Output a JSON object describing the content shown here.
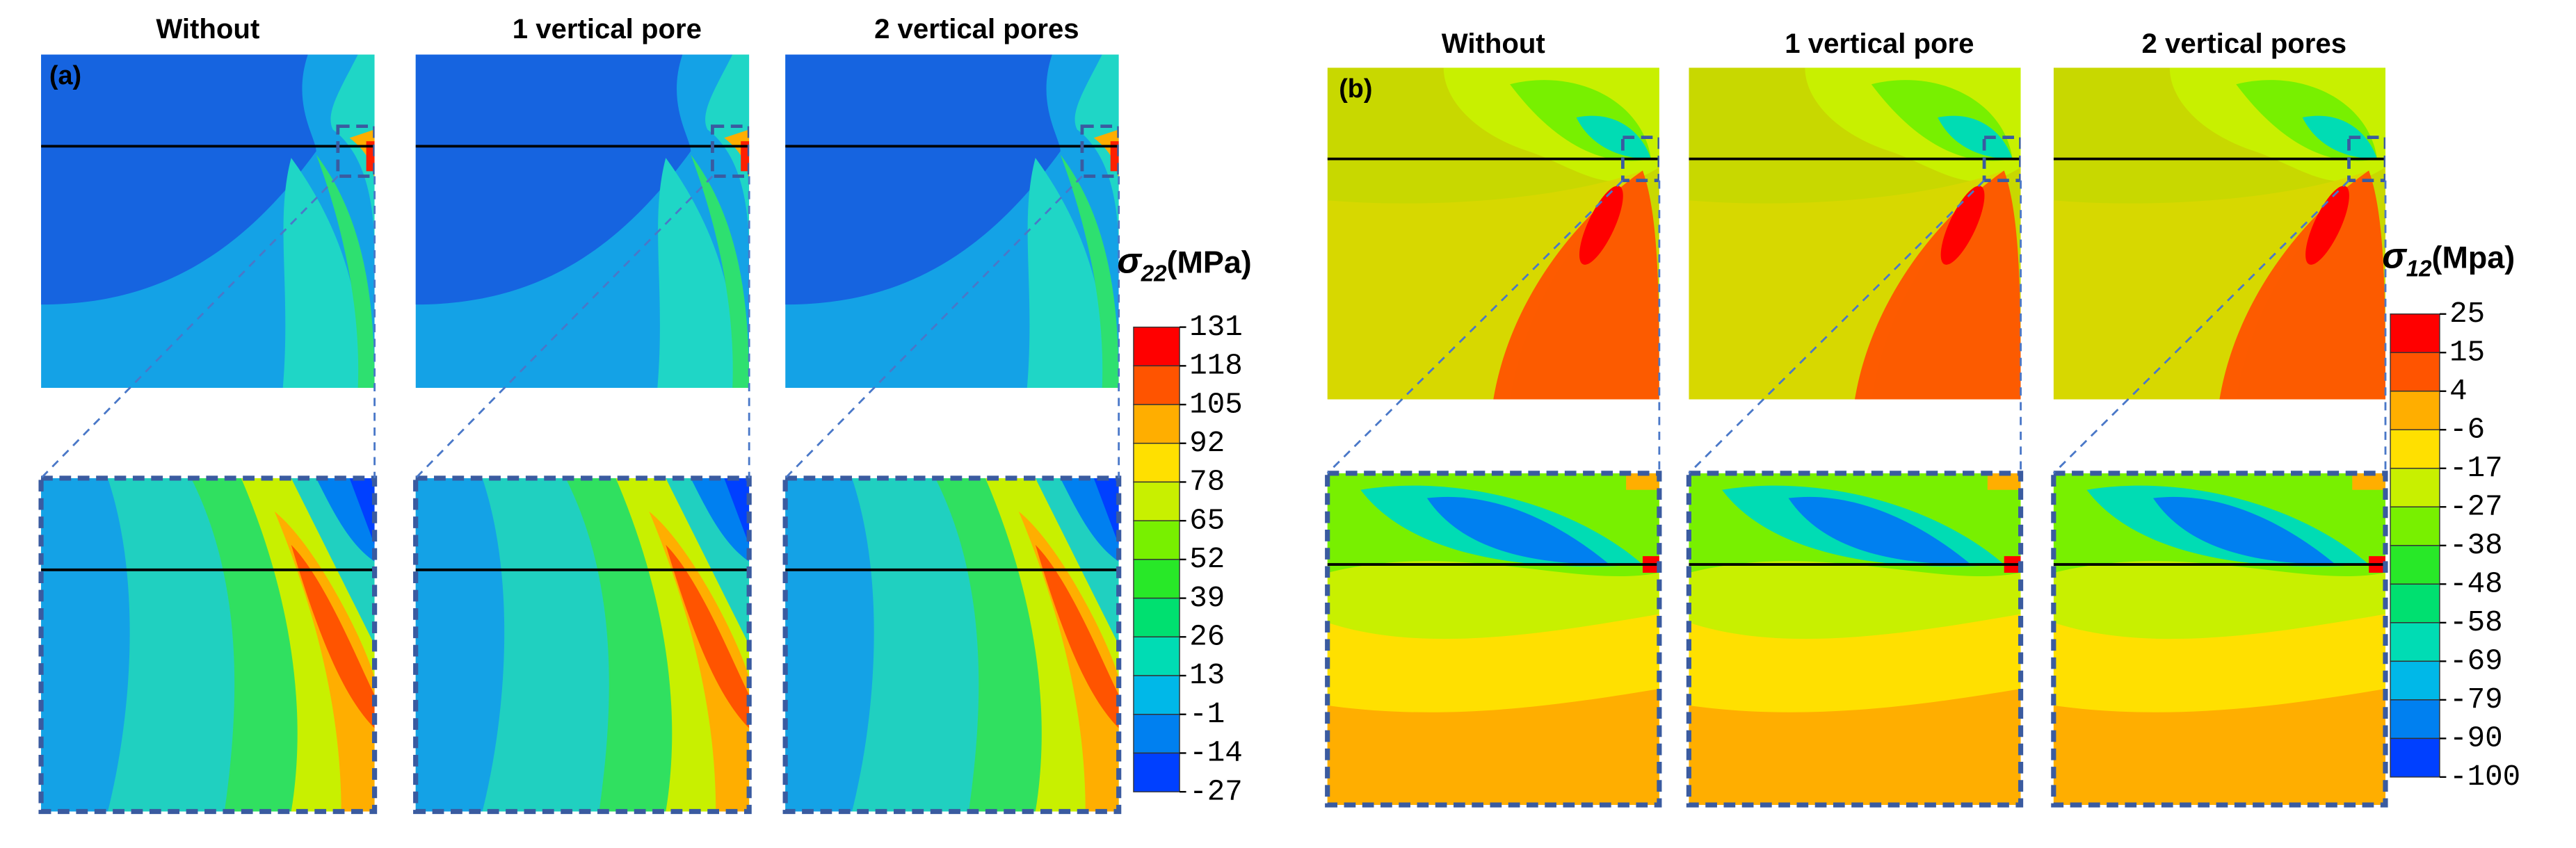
{
  "panels": [
    {
      "label": "(a)",
      "columns": [
        "Without",
        "1 vertical pore",
        "2 vertical pores"
      ],
      "legend": {
        "symbol": "σ",
        "subscript": "22",
        "unit": "(MPa)",
        "ticks": [
          131,
          118,
          105,
          92,
          78,
          65,
          52,
          39,
          26,
          13,
          -1,
          -14,
          -27
        ],
        "colors": [
          "#ff0000",
          "#ff5400",
          "#ffae00",
          "#ffe000",
          "#c8f000",
          "#78f000",
          "#28e828",
          "#00e070",
          "#00dcb4",
          "#00b8e8",
          "#0080f0",
          "#0040ff"
        ]
      }
    },
    {
      "label": "(b)",
      "columns": [
        "Without",
        "1 vertical pore",
        "2 vertical pores"
      ],
      "legend": {
        "symbol": "σ",
        "subscript": "12",
        "unit": "(Mpa)",
        "ticks": [
          25,
          15,
          4,
          -6,
          -17,
          -27,
          -38,
          -48,
          -58,
          -69,
          -79,
          -90,
          -100
        ],
        "colors": [
          "#ff0000",
          "#ff5400",
          "#ffae00",
          "#ffe000",
          "#c8f000",
          "#78f000",
          "#28e828",
          "#00e070",
          "#00dcb4",
          "#00b8e8",
          "#0080f0",
          "#0040ff"
        ]
      }
    }
  ]
}
